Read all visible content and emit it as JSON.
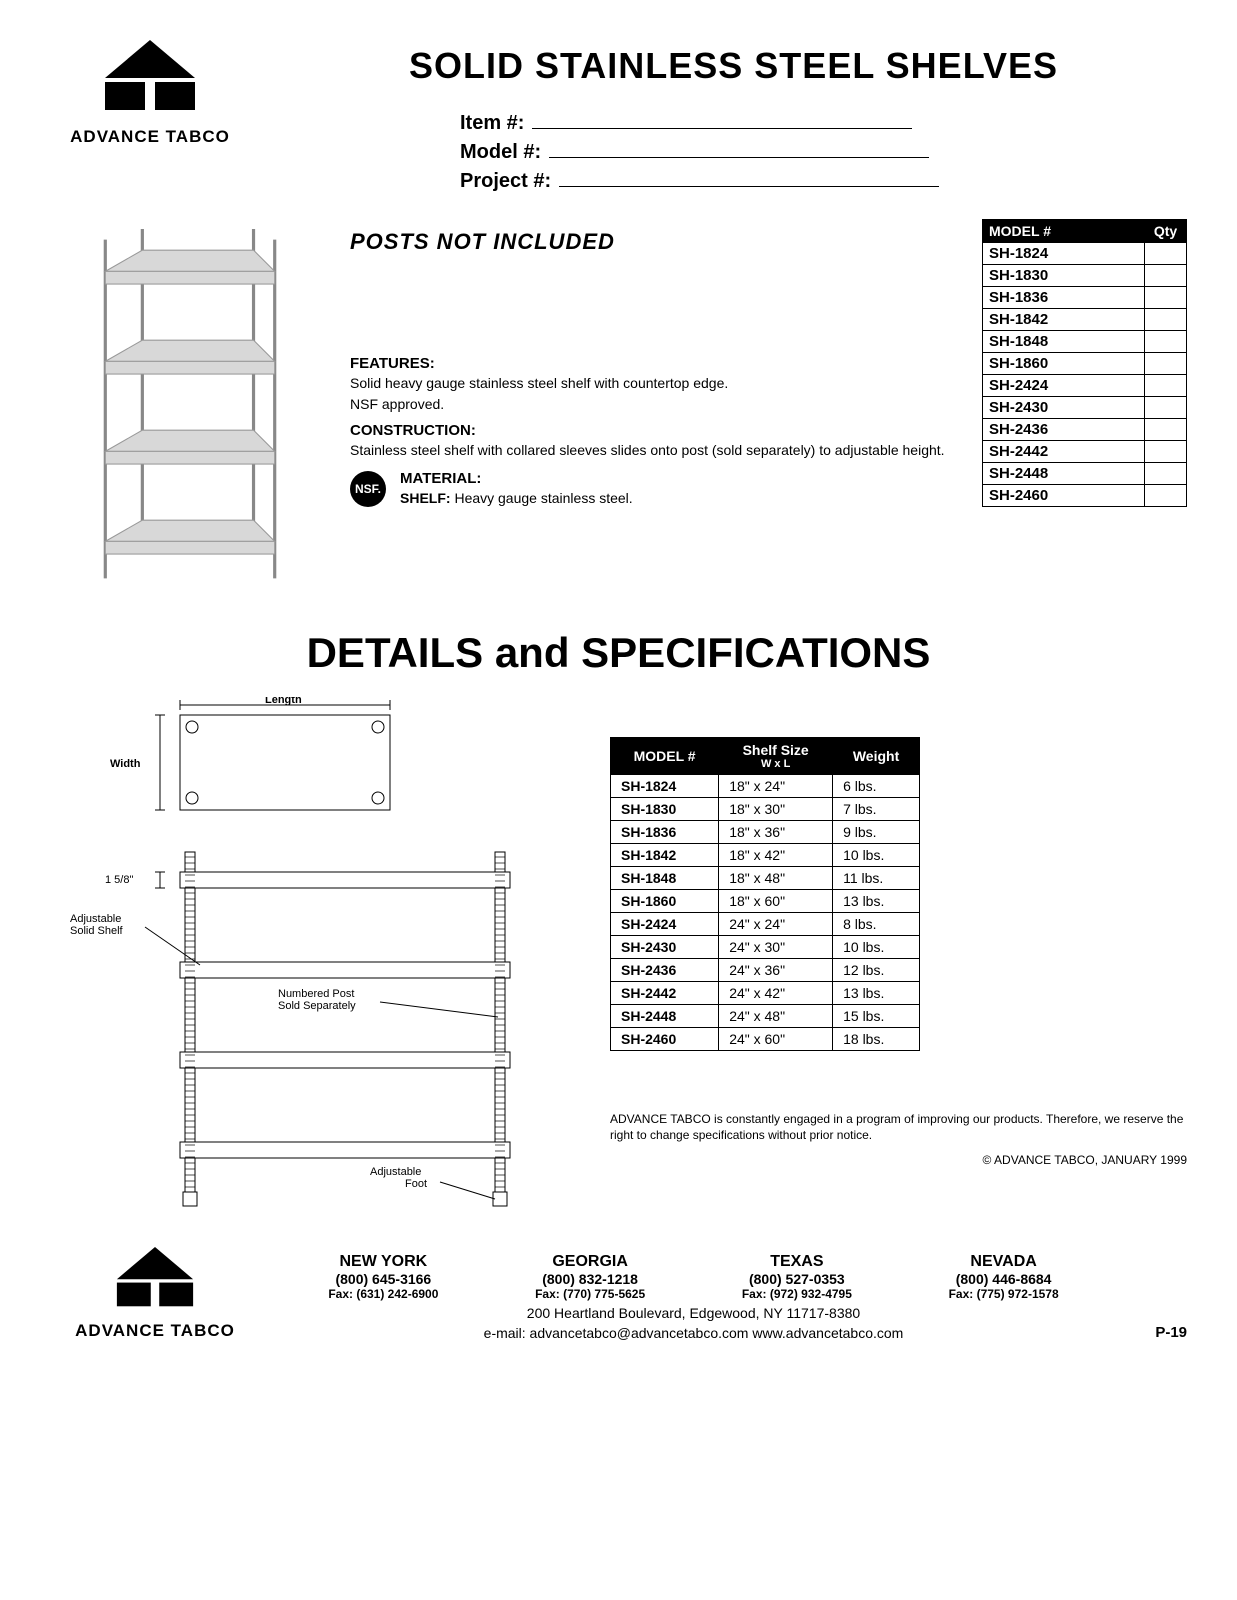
{
  "brand": "ADVANCE TABCO",
  "main_title": "SOLID STAINLESS STEEL SHELVES",
  "form_fields": [
    "Item #:",
    "Model #:",
    "Project #:"
  ],
  "posts_note": "POSTS NOT INCLUDED",
  "features_h": "FEATURES:",
  "features_p1": "Solid heavy gauge stainless steel shelf with countertop edge.",
  "features_p2": "NSF approved.",
  "construction_h": "CONSTRUCTION:",
  "construction_p": "Stainless steel shelf with collared sleeves slides onto post (sold separately) to adjustable height.",
  "nsf_text": "NSF.",
  "material_h": "MATERIAL:",
  "material_label": "SHELF:",
  "material_val": "Heavy gauge stainless steel.",
  "model_header": [
    "MODEL #",
    "Qty"
  ],
  "models": [
    "SH-1824",
    "SH-1830",
    "SH-1836",
    "SH-1842",
    "SH-1848",
    "SH-1860",
    "SH-2424",
    "SH-2430",
    "SH-2436",
    "SH-2442",
    "SH-2448",
    "SH-2460"
  ],
  "details_title": "DETAILS and SPECIFICATIONS",
  "diagram_labels": {
    "length": "Length",
    "width": "Width",
    "shelf_h": "1 5/8\"",
    "adj_shelf": "Adjustable Solid Shelf",
    "post": "Numbered Post Sold Separately",
    "foot": "Adjustable Foot"
  },
  "spec_headers": {
    "model": "MODEL #",
    "size": "Shelf Size",
    "size_sub": "W  x  L",
    "weight": "Weight"
  },
  "specs": [
    {
      "m": "SH-1824",
      "s": "18\" x 24\"",
      "w": "6 lbs."
    },
    {
      "m": "SH-1830",
      "s": "18\" x 30\"",
      "w": "7 lbs."
    },
    {
      "m": "SH-1836",
      "s": "18\" x 36\"",
      "w": "9 lbs."
    },
    {
      "m": "SH-1842",
      "s": "18\" x 42\"",
      "w": "10 lbs."
    },
    {
      "m": "SH-1848",
      "s": "18\" x 48\"",
      "w": "11 lbs."
    },
    {
      "m": "SH-1860",
      "s": "18\" x 60\"",
      "w": "13 lbs."
    },
    {
      "m": "SH-2424",
      "s": "24\" x 24\"",
      "w": "8 lbs."
    },
    {
      "m": "SH-2430",
      "s": "24\" x 30\"",
      "w": "10 lbs."
    },
    {
      "m": "SH-2436",
      "s": "24\" x 36\"",
      "w": "12 lbs."
    },
    {
      "m": "SH-2442",
      "s": "24\" x 42\"",
      "w": "13 lbs."
    },
    {
      "m": "SH-2448",
      "s": "24\" x 48\"",
      "w": "15 lbs."
    },
    {
      "m": "SH-2460",
      "s": "24\" x 60\"",
      "w": "18 lbs."
    }
  ],
  "disclaimer": "ADVANCE TABCO is constantly engaged in a program of improving our products. Therefore, we reserve the right to change specifications without prior notice.",
  "copyright": "© ADVANCE TABCO, JANUARY 1999",
  "locations": [
    {
      "name": "NEW YORK",
      "phone": "(800) 645-3166",
      "fax": "Fax: (631) 242-6900"
    },
    {
      "name": "GEORGIA",
      "phone": "(800) 832-1218",
      "fax": "Fax: (770) 775-5625"
    },
    {
      "name": "TEXAS",
      "phone": "(800) 527-0353",
      "fax": "Fax: (972) 932-4795"
    },
    {
      "name": "NEVADA",
      "phone": "(800) 446-8684",
      "fax": "Fax: (775) 972-1578"
    }
  ],
  "addr1": "200 Heartland Boulevard, Edgewood, NY 11717-8380",
  "addr2": "e-mail: advancetabco@advancetabco.com    www.advancetabco.com",
  "page": "P-19"
}
